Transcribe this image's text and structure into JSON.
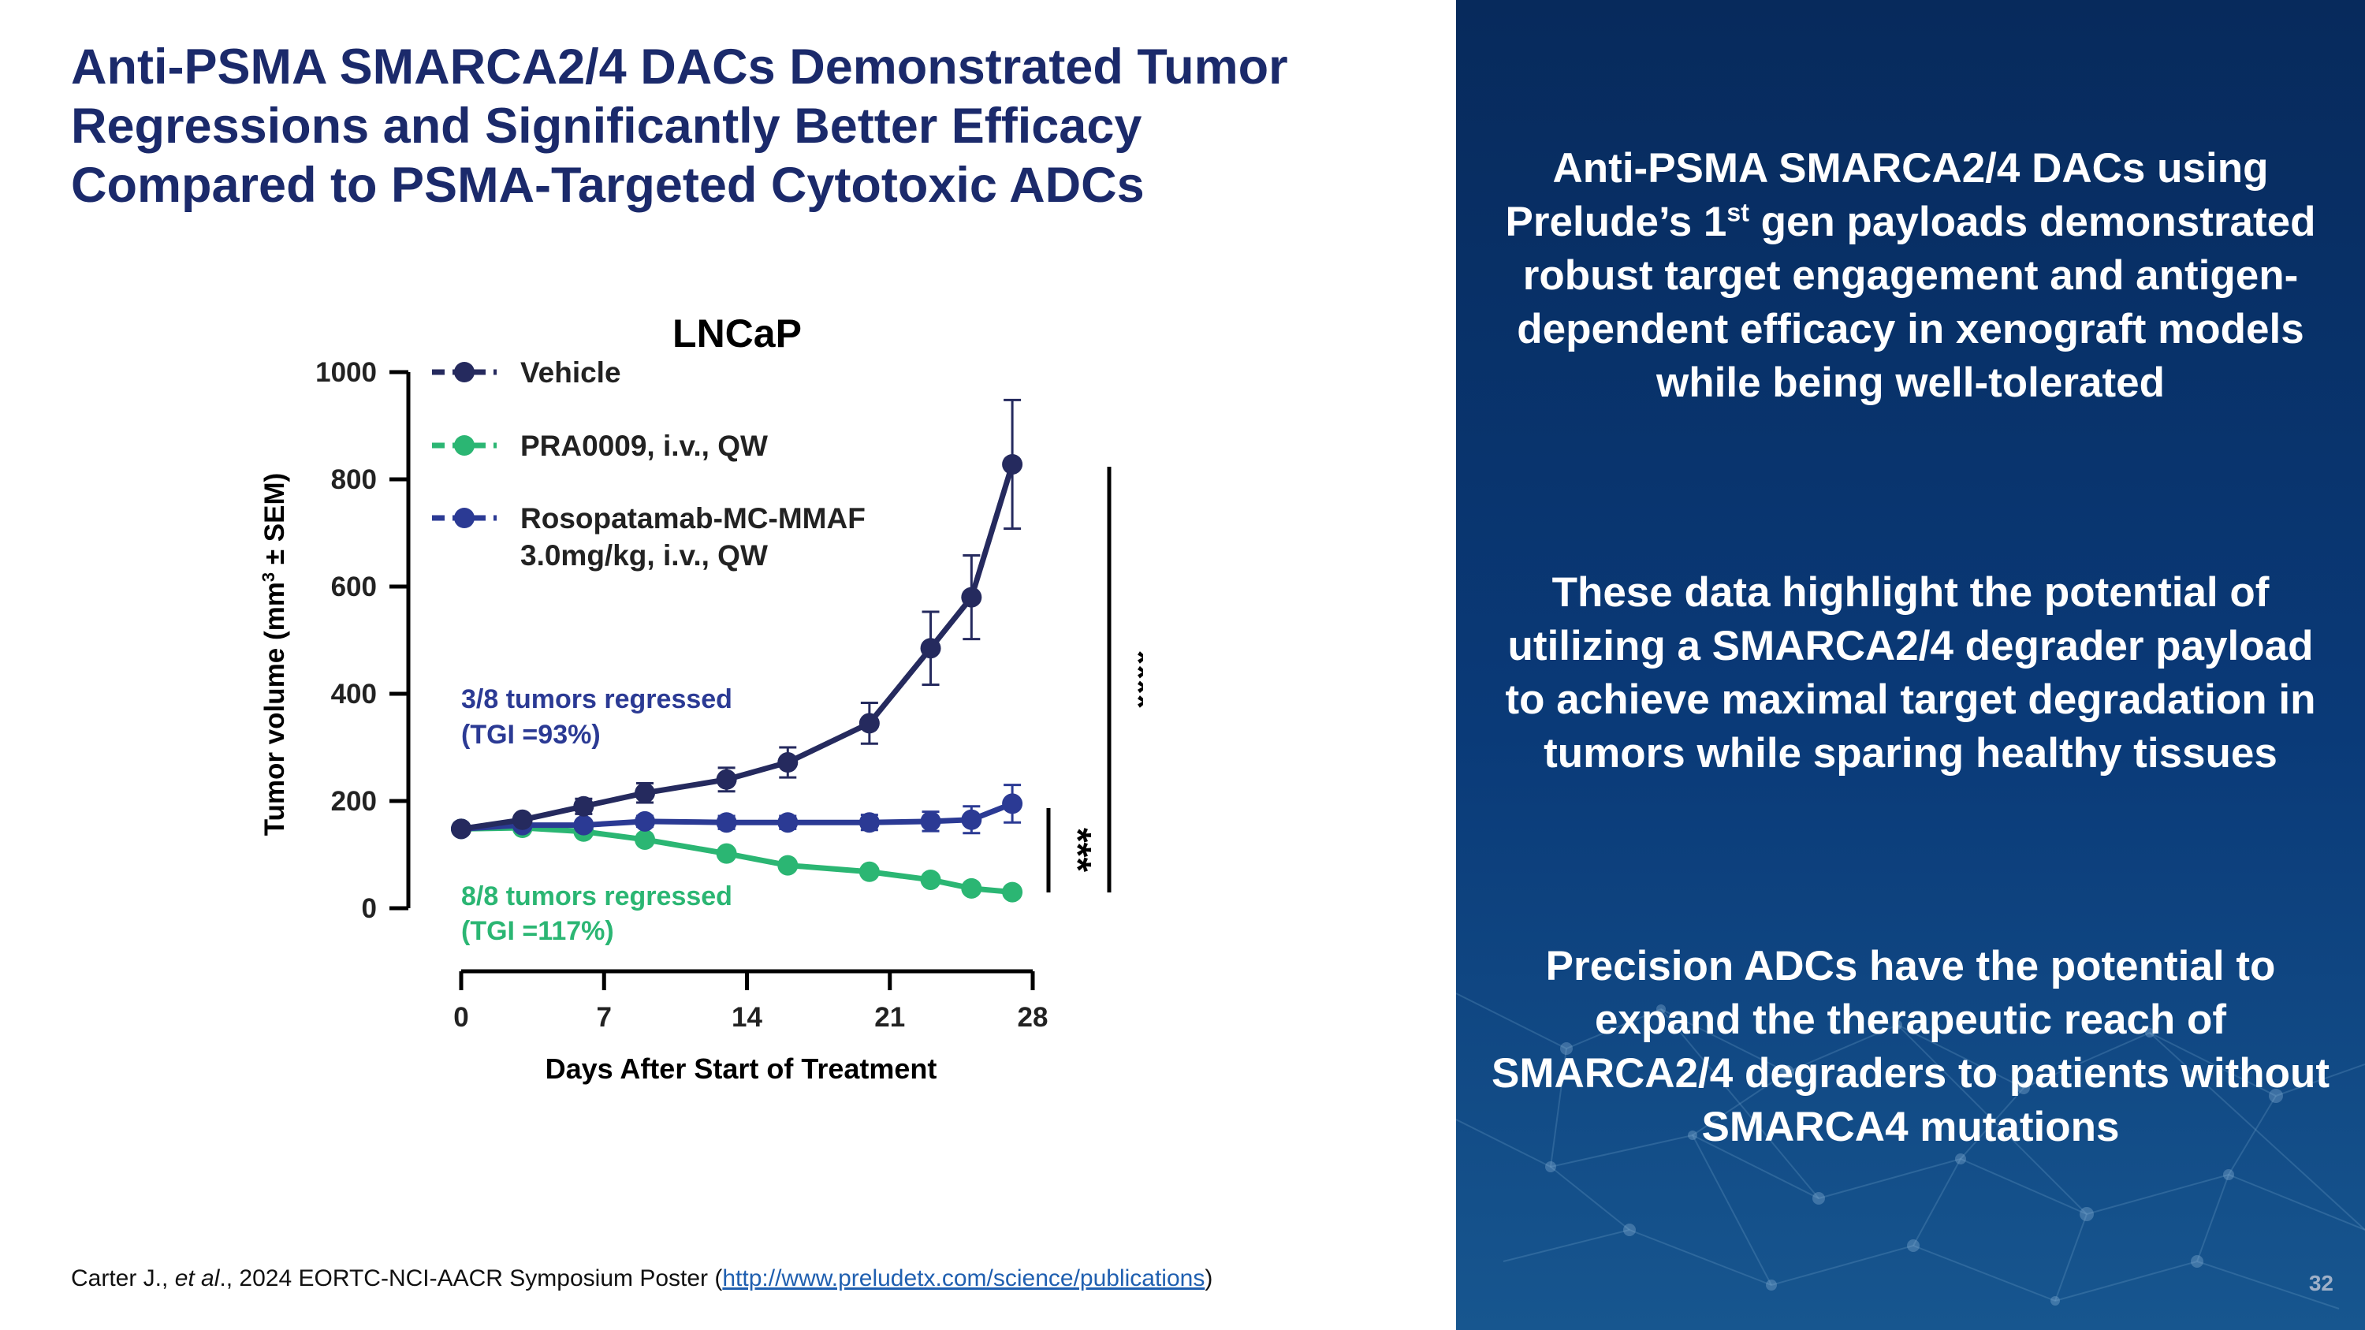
{
  "slide": {
    "title_lines": [
      "Anti-PSMA SMARCA2/4 DACs Demonstrated Tumor",
      "Regressions and Significantly Better Efficacy",
      "Compared to PSMA-Targeted Cytotoxic ADCs"
    ],
    "footer": {
      "pre": "Carter J., ",
      "italic": "et al",
      "mid": "., 2024 EORTC-NCI-AACR Symposium Poster (",
      "link": "http://www.preludetx.com/science/publications",
      "post": ")"
    },
    "page_number": "32"
  },
  "panel": {
    "p1_pre": "Anti-PSMA SMARCA2/4 DACs using Prelude’s 1",
    "p1_sup": "st",
    "p1_post": " gen payloads demonstrated robust target engagement and antigen-dependent efficacy in xenograft models while being well-tolerated",
    "p2": "These data highlight the potential of utilizing a SMARCA2/4 degrader payload to achieve maximal target degradation in tumors while sparing healthy tissues",
    "p3": "Precision ADCs have the potential to expand the therapeutic reach of SMARCA2/4 degraders to patients without SMARCA4 mutations"
  },
  "colors": {
    "title": "#1b2a6b",
    "vehicle": "#252a5e",
    "pra0009": "#2bb673",
    "rosopatamab": "#2b3a94"
  },
  "chart_data": {
    "type": "line",
    "title": "LNCaP",
    "xlabel": "Days After Start of Treatment",
    "ylabel_main": "Tumor volume (mm",
    "ylabel_sup": "3",
    "ylabel_tail": " ± SEM)",
    "xlim": [
      0,
      28
    ],
    "ylim": [
      0,
      1000
    ],
    "x_ticks": [
      0,
      7,
      14,
      21,
      28
    ],
    "y_ticks": [
      0,
      200,
      400,
      600,
      800,
      1000
    ],
    "x": [
      0,
      3,
      6,
      9,
      13,
      16,
      20,
      23,
      25,
      27
    ],
    "series": [
      {
        "name": "Vehicle",
        "legend": [
          "Vehicle"
        ],
        "color": "#252a5e",
        "values": [
          148,
          165,
          190,
          215,
          240,
          272,
          345,
          485,
          580,
          828
        ],
        "err": [
          0,
          8,
          14,
          18,
          22,
          28,
          38,
          68,
          78,
          120
        ]
      },
      {
        "name": "PRA0009, i.v., QW",
        "legend": [
          "PRA0009, i.v., QW"
        ],
        "color": "#2bb673",
        "values": [
          148,
          150,
          143,
          128,
          102,
          80,
          68,
          53,
          37,
          30
        ],
        "err": [
          0,
          5,
          5,
          5,
          5,
          4,
          4,
          4,
          3,
          3
        ]
      },
      {
        "name": "Rosopatamab-MC-MMAF 3.0mg/kg, i.v., QW",
        "legend": [
          "Rosopatamab-MC-MMAF",
          "3.0mg/kg, i.v., QW"
        ],
        "color": "#2b3a94",
        "values": [
          148,
          155,
          155,
          162,
          160,
          160,
          160,
          162,
          165,
          195
        ],
        "err": [
          0,
          5,
          8,
          10,
          12,
          12,
          14,
          18,
          25,
          35
        ]
      }
    ],
    "annotations": {
      "roso_line1": "3/8 tumors regressed",
      "roso_line2": "(TGI =93%)",
      "pra_line1": "8/8 tumors regressed",
      "pra_line2": "(TGI =117%)",
      "sig_vehicle": "****",
      "sig_roso": "***"
    }
  }
}
